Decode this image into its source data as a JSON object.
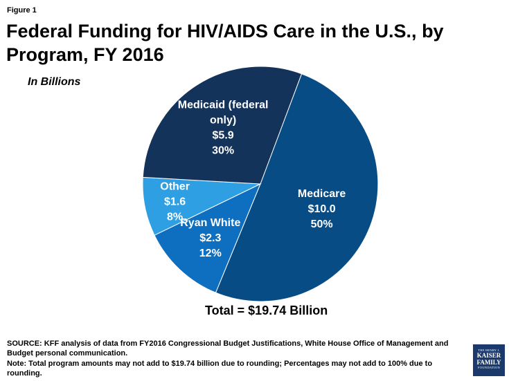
{
  "figure_label": "Figure 1",
  "title": "Federal Funding for HIV/AIDS Care in the U.S., by Program, FY 2016",
  "subtitle": "In Billions",
  "total_label": "Total = $19.74 Billion",
  "source_text": "SOURCE: KFF analysis of data from FY2016 Congressional Budget Justifications, White House Office of Management and Budget personal communication.",
  "note_text": "Note: Total program amounts may not add to $19.74 billion due to rounding; Percentages may not add to 100% due to rounding.",
  "logo": {
    "line1": "THE HENRY J.",
    "line2": "KAISER",
    "line3": "FAMILY",
    "line4": "FOUNDATION"
  },
  "chart_data": {
    "type": "pie",
    "title": "Federal Funding for HIV/AIDS Care in the U.S., by Program, FY 2016",
    "subtitle": "In Billions",
    "slices": [
      {
        "label": "Medicare",
        "value": 10.0,
        "value_label": "$10.0",
        "percent": 50,
        "percent_label": "50%",
        "color": "#084c86",
        "label_lines": [
          "Medicare"
        ]
      },
      {
        "label": "Ryan White",
        "value": 2.3,
        "value_label": "$2.3",
        "percent": 12,
        "percent_label": "12%",
        "color": "#0e6fc0",
        "label_lines": [
          "Ryan White"
        ]
      },
      {
        "label": "Other",
        "value": 1.6,
        "value_label": "$1.6",
        "percent": 8,
        "percent_label": "8%",
        "color": "#2e9fe2",
        "label_lines": [
          "Other"
        ]
      },
      {
        "label": "Medicaid (federal only)",
        "value": 5.9,
        "value_label": "$5.9",
        "percent": 30,
        "percent_label": "30%",
        "color": "#14335a",
        "label_lines": [
          "Medicaid (federal",
          "only)"
        ]
      }
    ],
    "total": 19.74
  }
}
